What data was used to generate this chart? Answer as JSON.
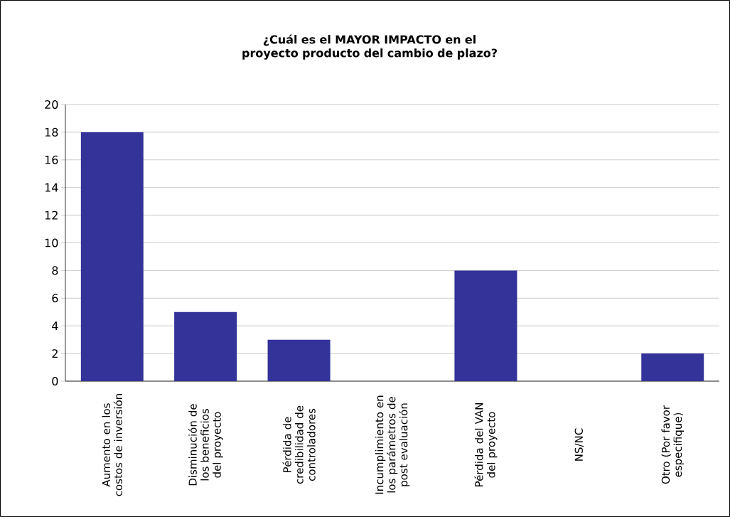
{
  "chart_data": {
    "type": "bar",
    "title": "¿Cuál es el MAYOR IMPACTO en el proyecto producto del cambio de plazo?",
    "categories": [
      "Aumento en los costos de inversión",
      "Disminución de los beneficios del proyecto",
      "Pérdida de credibilidad de controladores",
      "Incumplimiento en los parámetros de post evaluación",
      "Pérdida del VAN del proyecto",
      "NS/NC",
      "Otro (Por favor especifique)"
    ],
    "values": [
      18,
      5,
      3,
      0,
      8,
      0,
      2
    ],
    "color": "#333399",
    "ylim": [
      0,
      20
    ],
    "yticks": [
      0,
      2,
      4,
      6,
      8,
      10,
      12,
      14,
      16,
      18,
      20
    ],
    "grid": "y"
  }
}
